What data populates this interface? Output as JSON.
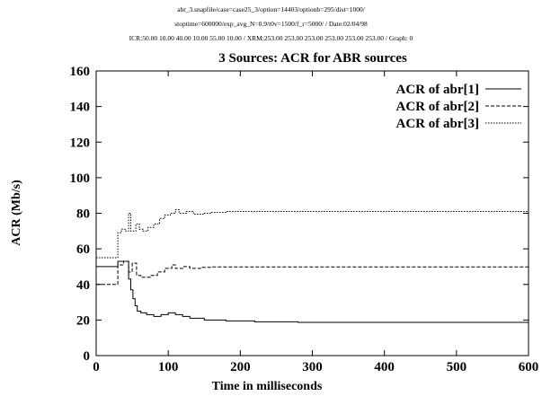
{
  "header": {
    "line1": "abr_3.snapfile/case=case25_3/option=14403/optionb=295/dist=1000/",
    "line2": "stoptime=600000/exp_avg_N=0.9/t0v=1500/f_r=5000/ / Date:02/04/98",
    "line3": "ICR:50.00 10.00 40.00 10.00 55.00 10.00 / XRM:253.00 253.00 253.00 253.00 253.00 253.00 / Graph: 0"
  },
  "chart_data": {
    "type": "line",
    "title": "3 Sources: ACR for ABR sources",
    "xlabel": "Time in milliseconds",
    "ylabel": "ACR (Mb/s)",
    "xlim": [
      0,
      600
    ],
    "ylim": [
      0,
      160
    ],
    "xticks": [
      0,
      100,
      200,
      300,
      400,
      500,
      600
    ],
    "yticks": [
      0,
      20,
      40,
      60,
      80,
      100,
      120,
      140,
      160
    ],
    "grid": false,
    "legend_position": "top-right",
    "series": [
      {
        "name": "ACR of abr[1]",
        "style": "solid",
        "points": [
          [
            0,
            50
          ],
          [
            30,
            50
          ],
          [
            30,
            53
          ],
          [
            45,
            53
          ],
          [
            45,
            43
          ],
          [
            48,
            43
          ],
          [
            48,
            37
          ],
          [
            51,
            37
          ],
          [
            51,
            32
          ],
          [
            54,
            32
          ],
          [
            54,
            28
          ],
          [
            57,
            28
          ],
          [
            57,
            25
          ],
          [
            62,
            25
          ],
          [
            62,
            24
          ],
          [
            70,
            24
          ],
          [
            70,
            23
          ],
          [
            80,
            23
          ],
          [
            80,
            22
          ],
          [
            90,
            22
          ],
          [
            90,
            23
          ],
          [
            100,
            23
          ],
          [
            100,
            24
          ],
          [
            110,
            24
          ],
          [
            110,
            23
          ],
          [
            120,
            23
          ],
          [
            120,
            22
          ],
          [
            130,
            22
          ],
          [
            130,
            21
          ],
          [
            150,
            21
          ],
          [
            150,
            20
          ],
          [
            180,
            20
          ],
          [
            180,
            19.5
          ],
          [
            220,
            19.5
          ],
          [
            220,
            19
          ],
          [
            280,
            19
          ],
          [
            280,
            18.7
          ],
          [
            600,
            18.7
          ]
        ]
      },
      {
        "name": "ACR of abr[2]",
        "style": "dashed",
        "points": [
          [
            0,
            40
          ],
          [
            30,
            40
          ],
          [
            30,
            51
          ],
          [
            38,
            51
          ],
          [
            38,
            53
          ],
          [
            45,
            53
          ],
          [
            45,
            47
          ],
          [
            50,
            47
          ],
          [
            50,
            52
          ],
          [
            56,
            52
          ],
          [
            56,
            45
          ],
          [
            62,
            45
          ],
          [
            62,
            44
          ],
          [
            75,
            44
          ],
          [
            75,
            45
          ],
          [
            85,
            45
          ],
          [
            85,
            47
          ],
          [
            95,
            47
          ],
          [
            95,
            49
          ],
          [
            105,
            49
          ],
          [
            105,
            51
          ],
          [
            110,
            51
          ],
          [
            110,
            49
          ],
          [
            120,
            49
          ],
          [
            120,
            50
          ],
          [
            130,
            50
          ],
          [
            130,
            49
          ],
          [
            145,
            49
          ],
          [
            145,
            49.6
          ],
          [
            160,
            49.6
          ],
          [
            160,
            49.8
          ],
          [
            600,
            49.8
          ]
        ]
      },
      {
        "name": "ACR of abr[3]",
        "style": "dotted",
        "points": [
          [
            0,
            55
          ],
          [
            30,
            55
          ],
          [
            30,
            69
          ],
          [
            35,
            69
          ],
          [
            35,
            71
          ],
          [
            40,
            71
          ],
          [
            40,
            70
          ],
          [
            45,
            70
          ],
          [
            45,
            80
          ],
          [
            48,
            80
          ],
          [
            48,
            70
          ],
          [
            55,
            70
          ],
          [
            55,
            74
          ],
          [
            60,
            74
          ],
          [
            60,
            71
          ],
          [
            65,
            71
          ],
          [
            65,
            70
          ],
          [
            72,
            70
          ],
          [
            72,
            72
          ],
          [
            80,
            72
          ],
          [
            80,
            74
          ],
          [
            88,
            74
          ],
          [
            88,
            77
          ],
          [
            95,
            77
          ],
          [
            95,
            79
          ],
          [
            103,
            79
          ],
          [
            103,
            80
          ],
          [
            110,
            80
          ],
          [
            110,
            82
          ],
          [
            115,
            82
          ],
          [
            115,
            80
          ],
          [
            125,
            80
          ],
          [
            125,
            81
          ],
          [
            135,
            81
          ],
          [
            135,
            79.5
          ],
          [
            150,
            79.5
          ],
          [
            150,
            80
          ],
          [
            160,
            80
          ],
          [
            160,
            80.5
          ],
          [
            180,
            80.5
          ],
          [
            180,
            81
          ],
          [
            600,
            81
          ]
        ]
      }
    ]
  }
}
